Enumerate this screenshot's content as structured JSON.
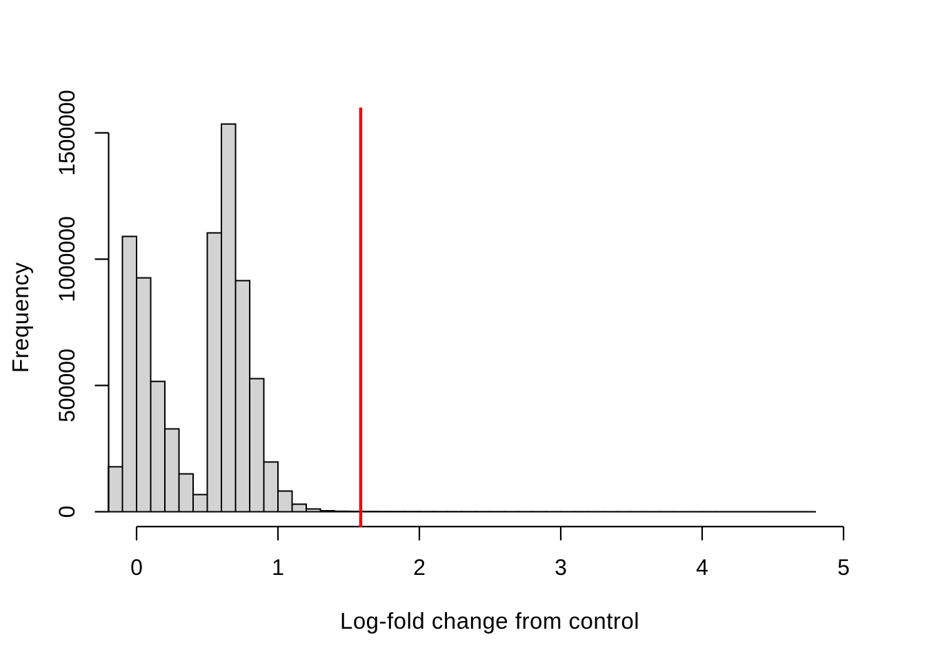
{
  "figure": {
    "background": "#ffffff",
    "text_color": "#000000"
  },
  "chart_data": {
    "type": "bar",
    "subtype": "histogram",
    "title": "",
    "xlabel": "Log-fold change from control",
    "ylabel": "Frequency",
    "bin_start": -0.2,
    "bin_width": 0.1,
    "counts": [
      178000,
      1090000,
      926000,
      516000,
      328000,
      150000,
      68000,
      1104000,
      1535000,
      915000,
      527000,
      197000,
      82000,
      30000,
      11000,
      4000,
      2000,
      1500,
      1200,
      1000,
      900,
      800,
      700,
      650,
      600,
      550,
      500,
      480,
      450,
      420,
      400,
      380,
      350,
      330,
      300,
      280,
      260,
      250,
      240,
      230,
      220,
      210,
      200,
      190,
      180,
      170,
      160,
      150,
      140,
      130
    ],
    "x_ticks": [
      0,
      1,
      2,
      3,
      4,
      5
    ],
    "x_tick_labels": [
      "0",
      "1",
      "2",
      "3",
      "4",
      "5"
    ],
    "y_ticks": [
      0,
      500000,
      1000000,
      1500000
    ],
    "y_tick_labels": [
      "0",
      "500000",
      "1000000",
      "1500000"
    ],
    "xlim": [
      -0.2,
      5.0
    ],
    "ylim": [
      0,
      1600000
    ],
    "grid": false,
    "legend": null,
    "bar_fill": "#d3d3d3",
    "bar_stroke": "#000000",
    "axis_color": "#000000",
    "vline": {
      "x": 1.585,
      "color": "#ff0000"
    }
  }
}
